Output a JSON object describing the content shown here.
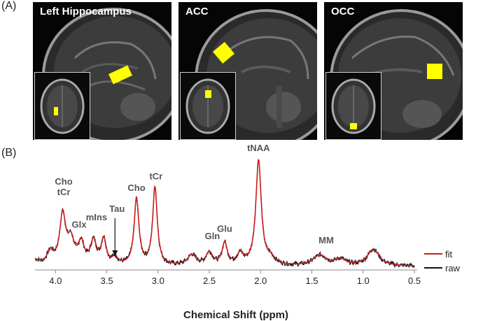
{
  "panel_a": {
    "letter": "(A)",
    "regions": [
      {
        "title": "Left Hippocampus"
      },
      {
        "title": "ACC"
      },
      {
        "title": "OCC"
      }
    ],
    "voxel_color": "#ffff00"
  },
  "panel_b": {
    "letter": "(B)"
  },
  "chart_data": {
    "type": "line",
    "xlabel": "Chemical Shift (ppm)",
    "xlim": [
      4.2,
      0.5
    ],
    "x_reversed": true,
    "xticks": [
      "4.0",
      "3.5",
      "3.0",
      "2.5",
      "2.0",
      "1.5",
      "1.0",
      "0.5"
    ],
    "tick_values": [
      4.0,
      3.5,
      3.0,
      2.5,
      2.0,
      1.5,
      1.0,
      0.5
    ],
    "grid": false,
    "legend_position": "right",
    "series": [
      {
        "name": "fit",
        "color": "#cc1f1f"
      },
      {
        "name": "raw",
        "color": "#111111"
      }
    ],
    "peaks": [
      {
        "ppm": 4.2,
        "amp": 0.05,
        "w": 0.05
      },
      {
        "ppm": 4.05,
        "amp": 0.12,
        "w": 0.04
      },
      {
        "ppm": 3.93,
        "amp": 0.47,
        "w": 0.035
      },
      {
        "ppm": 3.85,
        "amp": 0.22,
        "w": 0.04
      },
      {
        "ppm": 3.75,
        "amp": 0.2,
        "w": 0.035
      },
      {
        "ppm": 3.63,
        "amp": 0.22,
        "w": 0.035
      },
      {
        "ppm": 3.53,
        "amp": 0.24,
        "w": 0.03
      },
      {
        "ppm": 3.42,
        "amp": 0.07,
        "w": 0.03
      },
      {
        "ppm": 3.21,
        "amp": 0.63,
        "w": 0.028
      },
      {
        "ppm": 3.03,
        "amp": 0.74,
        "w": 0.027
      },
      {
        "ppm": 2.67,
        "amp": 0.1,
        "w": 0.05
      },
      {
        "ppm": 2.5,
        "amp": 0.12,
        "w": 0.04
      },
      {
        "ppm": 2.35,
        "amp": 0.21,
        "w": 0.03
      },
      {
        "ppm": 2.2,
        "amp": 0.1,
        "w": 0.04
      },
      {
        "ppm": 2.02,
        "amp": 1.0,
        "w": 0.032
      },
      {
        "ppm": 1.9,
        "amp": 0.06,
        "w": 0.05
      },
      {
        "ppm": 1.42,
        "amp": 0.1,
        "w": 0.08
      },
      {
        "ppm": 1.22,
        "amp": 0.06,
        "w": 0.06
      },
      {
        "ppm": 0.9,
        "amp": 0.16,
        "w": 0.07
      }
    ],
    "annotations": [
      {
        "text": "Cho",
        "ppm": 3.92,
        "level": 0.78
      },
      {
        "text": "tCr",
        "ppm": 3.92,
        "level": 0.68
      },
      {
        "text": "Glx",
        "ppm": 3.77,
        "level": 0.37
      },
      {
        "text": "mIns",
        "ppm": 3.6,
        "level": 0.44
      },
      {
        "text": "Tau",
        "ppm": 3.4,
        "level": 0.52
      },
      {
        "text": "Cho",
        "ppm": 3.21,
        "level": 0.72
      },
      {
        "text": "tCr",
        "ppm": 3.02,
        "level": 0.83
      },
      {
        "text": "tNAA",
        "ppm": 2.02,
        "level": 1.1
      },
      {
        "text": "Glu",
        "ppm": 2.35,
        "level": 0.33
      },
      {
        "text": "Gln",
        "ppm": 2.47,
        "level": 0.26
      },
      {
        "text": "MM",
        "ppm": 1.36,
        "level": 0.22
      }
    ],
    "tau_arrow": {
      "from_level": 0.46,
      "to_level": 0.1,
      "ppm": 3.42
    }
  }
}
